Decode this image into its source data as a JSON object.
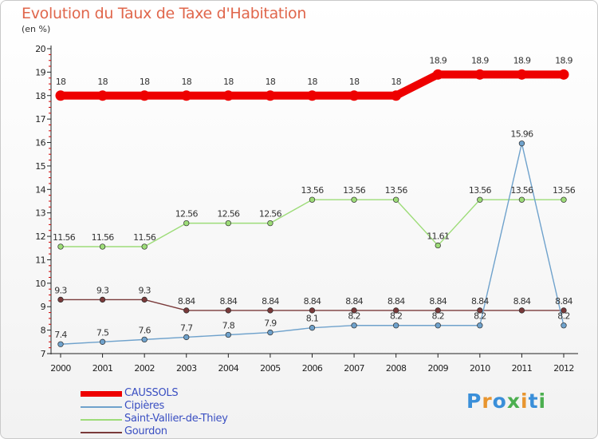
{
  "title": "Evolution du Taux de Taxe d'Habitation",
  "unit": "(en %)",
  "brand": {
    "letters": [
      "P",
      "r",
      "o",
      "x",
      "i",
      "t",
      "i"
    ],
    "colors": [
      "#3a8fd9",
      "#e8952f",
      "#3a8fd9",
      "#4caf50",
      "#e8952f",
      "#3a8fd9",
      "#4caf50"
    ]
  },
  "chart_data": {
    "type": "line",
    "categories": [
      "2000",
      "2001",
      "2002",
      "2003",
      "2004",
      "2005",
      "2006",
      "2007",
      "2008",
      "2009",
      "2010",
      "2011",
      "2012"
    ],
    "ylim": [
      7,
      20
    ],
    "yticks": [
      "7",
      "8",
      "9",
      "10",
      "11",
      "12",
      "13",
      "14",
      "15",
      "16",
      "17",
      "18",
      "19",
      "20"
    ],
    "grid": false,
    "legend_position": "bottom-left",
    "series": [
      {
        "name": "CAUSSOLS",
        "color": "#ee0000",
        "values": [
          18,
          18,
          18,
          18,
          18,
          18,
          18,
          18,
          18,
          18.9,
          18.9,
          18.9,
          18.9
        ],
        "labels": [
          "18",
          "18",
          "18",
          "18",
          "18",
          "18",
          "18",
          "18",
          "18",
          "18.9",
          "18.9",
          "18.9",
          "18.9"
        ]
      },
      {
        "name": "Cipières",
        "color": "#6fa2cc",
        "values": [
          7.4,
          7.5,
          7.6,
          7.7,
          7.8,
          7.9,
          8.1,
          8.2,
          8.2,
          8.2,
          8.2,
          15.96,
          8.2
        ],
        "labels": [
          "7.4",
          "7.5",
          "7.6",
          "7.7",
          "7.8",
          "7.9",
          "8.1",
          "8.2",
          "8.2",
          "8.2",
          "8.2",
          "15.96",
          "8.2"
        ]
      },
      {
        "name": "Saint-Vallier-de-Thiey",
        "color": "#9ddc78",
        "values": [
          11.56,
          11.56,
          11.56,
          12.56,
          12.56,
          12.56,
          13.56,
          13.56,
          13.56,
          11.61,
          13.56,
          13.56,
          13.56
        ],
        "labels": [
          "11.56",
          "11.56",
          "11.56",
          "12.56",
          "12.56",
          "12.56",
          "13.56",
          "13.56",
          "13.56",
          "11.61",
          "13.56",
          "13.56",
          "13.56"
        ]
      },
      {
        "name": "Gourdon",
        "color": "#7a3a3a",
        "values": [
          9.3,
          9.3,
          9.3,
          8.84,
          8.84,
          8.84,
          8.84,
          8.84,
          8.84,
          8.84,
          8.84,
          8.84,
          8.84
        ],
        "labels": [
          "9.3",
          "9.3",
          "9.3",
          "8.84",
          "8.84",
          "8.84",
          "8.84",
          "8.84",
          "8.84",
          "8.84",
          "8.84",
          "8.84",
          "8.84"
        ]
      }
    ]
  }
}
